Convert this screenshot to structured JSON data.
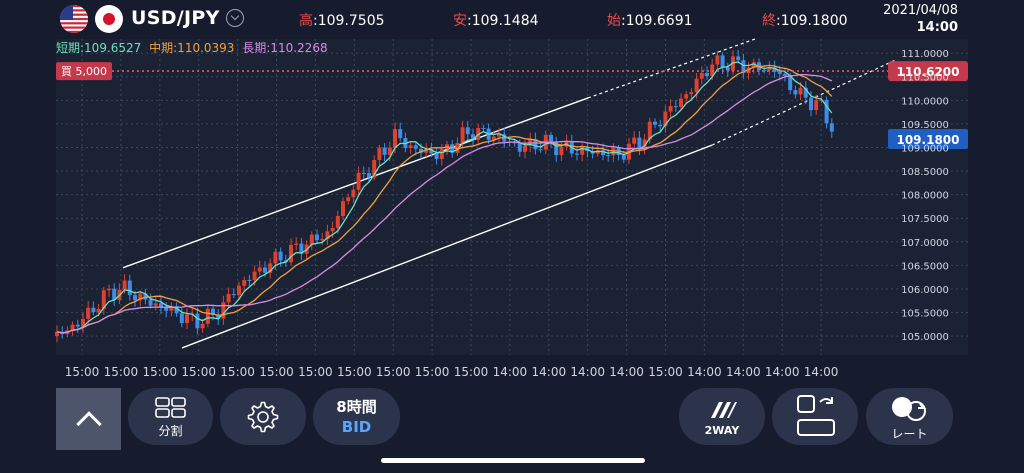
{
  "header": {
    "pair": "USD/JPY",
    "high_label": "高",
    "high_value": ":109.7505",
    "low_label": "安",
    "low_value": ":109.1484",
    "open_label": "始",
    "open_value": ":109.6691",
    "close_label": "終",
    "close_value": ":109.1800",
    "date": "2021/04/08",
    "time": "14:00"
  },
  "ma_legend": {
    "short": "短期:109.6527",
    "mid": "中期:110.0393",
    "long": "長期:110.2268"
  },
  "colors": {
    "bg": "#161c2d",
    "up": "#e0412f",
    "down": "#3d8ee8",
    "ma_short": "#6fe0c0",
    "ma_mid": "#f0a040",
    "ma_long": "#d88ce0",
    "order_line": "#e8546a",
    "trend": "#ffffff"
  },
  "order": {
    "label": "買 5,000",
    "price_label": "110.6200"
  },
  "current_price_label": "109.1800",
  "y_ticks": [
    "111.0000",
    "110.5000",
    "110.0000",
    "109.5000",
    "109.0000",
    "108.5000",
    "108.0000",
    "107.5000",
    "107.0000",
    "106.5000",
    "106.0000",
    "105.5000",
    "105.0000"
  ],
  "x_ticks": [
    "15:00",
    "15:00",
    "15:00",
    "15:00",
    "15:00",
    "15:00",
    "15:00",
    "15:00",
    "15:00",
    "15:00",
    "15:00",
    "14:00",
    "14:00",
    "14:00",
    "14:00",
    "15:00",
    "14:00",
    "14:00",
    "14:00",
    "14:00"
  ],
  "toolbar": {
    "split_label": "分割",
    "period_label": "8時間",
    "price_type_label": "BID",
    "twoway_label": "2WAY",
    "rate_label": "レート"
  },
  "chart_data": {
    "type": "candlestick",
    "symbol": "USD/JPY",
    "timeframe": "8時間",
    "ylim": [
      104.6,
      111.3
    ],
    "order_price": 110.62,
    "current_price": 109.18,
    "x_labels": [
      "15:00",
      "15:00",
      "15:00",
      "15:00",
      "15:00",
      "15:00",
      "15:00",
      "15:00",
      "15:00",
      "15:00",
      "15:00",
      "14:00",
      "14:00",
      "14:00",
      "14:00",
      "15:00",
      "14:00",
      "14:00",
      "14:00",
      "14:00"
    ],
    "series": [
      {
        "name": "短期",
        "last": 109.6527
      },
      {
        "name": "中期",
        "last": 110.0393
      },
      {
        "name": "長期",
        "last": 110.2268
      }
    ]
  }
}
